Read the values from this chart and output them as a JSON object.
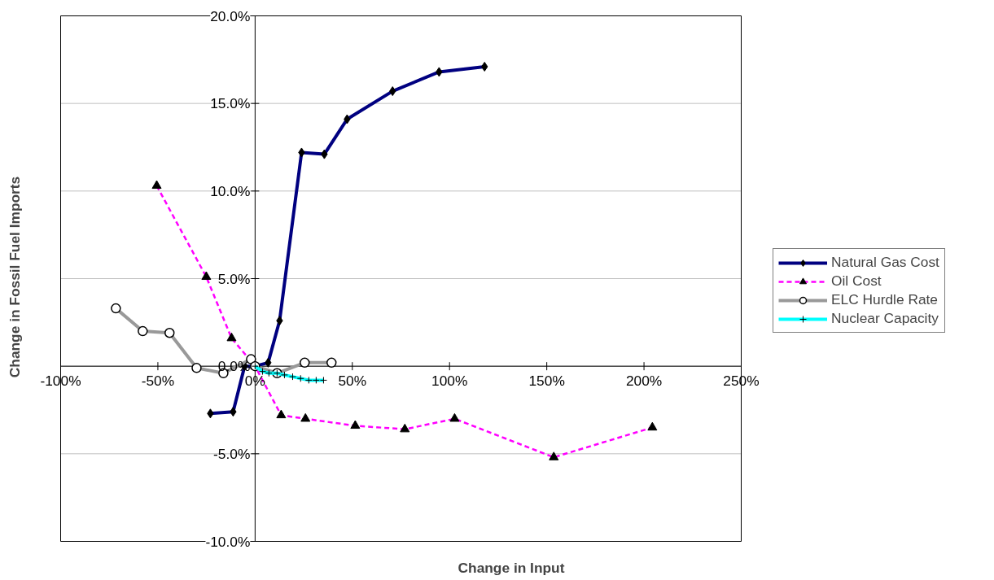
{
  "chart_data": {
    "type": "line",
    "xlabel": "Change in Input",
    "ylabel": "Change in Fossil Fuel Imports",
    "xlim": [
      -100,
      250
    ],
    "ylim": [
      -10,
      20
    ],
    "xticks": [
      {
        "value": -100,
        "label": "-100%"
      },
      {
        "value": -50,
        "label": "-50%"
      },
      {
        "value": 0,
        "label": "0%"
      },
      {
        "value": 50,
        "label": "50%"
      },
      {
        "value": 100,
        "label": "100%"
      },
      {
        "value": 150,
        "label": "150%"
      },
      {
        "value": 200,
        "label": "200%"
      },
      {
        "value": 250,
        "label": "250%"
      }
    ],
    "yticks": [
      {
        "value": -10,
        "label": "-10.0%"
      },
      {
        "value": -5,
        "label": "-5.0%"
      },
      {
        "value": 0,
        "label": "0.0%"
      },
      {
        "value": 5,
        "label": "5.0%"
      },
      {
        "value": 10,
        "label": "10.0%"
      },
      {
        "value": 15,
        "label": "15.0%"
      },
      {
        "value": 20,
        "label": "20.0%"
      }
    ],
    "grid": "y",
    "legend": "right",
    "series": [
      {
        "name": "Natural Gas Cost",
        "color": "#000080",
        "marker": "diamond",
        "line_style": "solid",
        "x": [
          -23.0,
          -11.3,
          -5.4,
          0,
          6.7,
          12.6,
          23.9,
          35.6,
          47.3,
          70.7,
          94.6,
          118.0
        ],
        "values": [
          -2.7,
          -2.6,
          0.0,
          0.0,
          0.2,
          2.6,
          12.2,
          12.1,
          14.1,
          15.7,
          16.8,
          17.1
        ]
      },
      {
        "name": "Oil Cost",
        "color": "#ff00ff",
        "marker": "triangle",
        "line_style": "dashed",
        "x": [
          -50.6,
          -25.1,
          -12.1,
          0,
          13.4,
          25.9,
          51.5,
          77.0,
          102.6,
          153.6,
          204.3
        ],
        "values": [
          10.3,
          5.1,
          1.6,
          0,
          -2.8,
          -3.0,
          -3.4,
          -3.6,
          -3.0,
          -5.2,
          -3.5
        ]
      },
      {
        "name": "ELC Hurdle Rate",
        "color": "#999999",
        "marker": "circle",
        "line_style": "solid",
        "x": [
          -71.6,
          -57.8,
          -44.0,
          -30.1,
          -16.3,
          -2.1,
          0,
          11.3,
          25.5,
          39.3
        ],
        "values": [
          3.3,
          2.0,
          1.9,
          -0.1,
          -0.4,
          0.4,
          0,
          -0.4,
          0.2,
          0.2
        ]
      },
      {
        "name": "Nuclear Capacity",
        "color": "#00ffff",
        "marker": "cross",
        "line_style": "solid",
        "x": [
          0,
          3.8,
          7.1,
          11.3,
          15.1,
          19.3,
          23.4,
          27.6,
          31.4,
          35.2
        ],
        "values": [
          0,
          -0.3,
          -0.4,
          -0.4,
          -0.5,
          -0.6,
          -0.7,
          -0.8,
          -0.8,
          -0.8
        ]
      }
    ]
  }
}
